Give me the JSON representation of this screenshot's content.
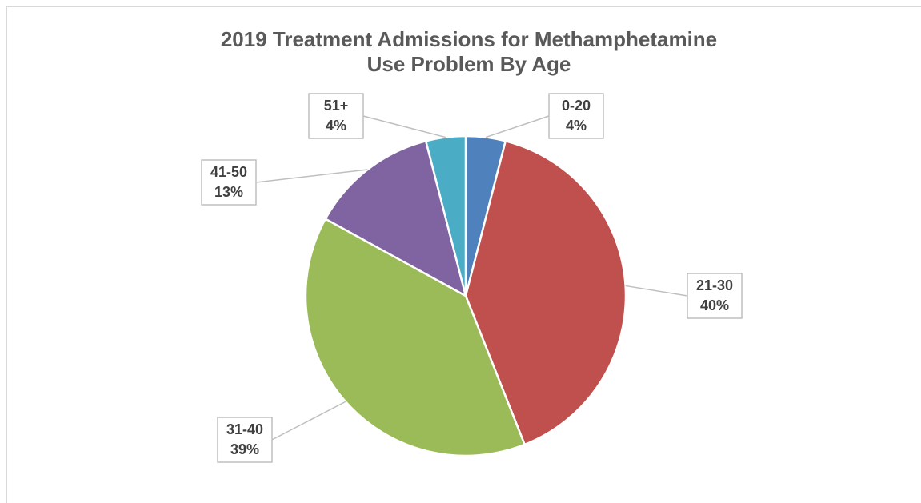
{
  "chart_data": {
    "type": "pie",
    "title": "2019 Treatment Admissions for Methamphetamine Use Problem By Age",
    "categories": [
      "0-20",
      "21-30",
      "31-40",
      "41-50",
      "51+"
    ],
    "values": [
      4,
      40,
      39,
      13,
      4
    ],
    "value_labels": [
      "4%",
      "40%",
      "39%",
      "13%",
      "4%"
    ],
    "colors": [
      "#4f81bd",
      "#c0504d",
      "#9bbb59",
      "#8064a2",
      "#4bacc6"
    ]
  }
}
